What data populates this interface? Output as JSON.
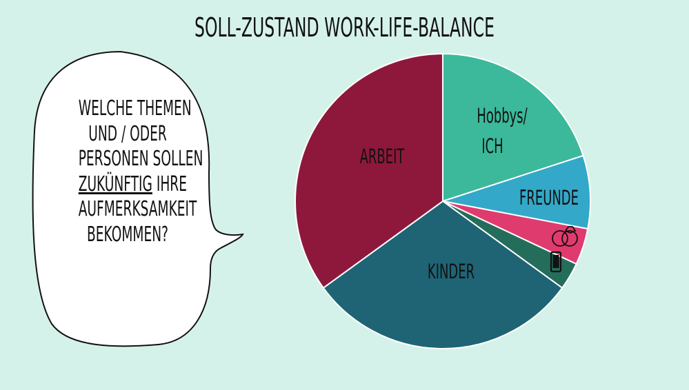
{
  "title": "SOLL-ZUSTAND WORK-LIFE-BALANCE",
  "bubble": {
    "lines": [
      {
        "text": "WELCHE THEMEN"
      },
      {
        "text": "UND / ODER"
      },
      {
        "text": "PERSONEN SOLLEN"
      },
      {
        "text_underlined": "ZUKÜNFTIG",
        "text_rest": " IHRE"
      },
      {
        "text": "AUFMERKSAMKEIT"
      },
      {
        "text": "BEKOMMEN?"
      }
    ]
  },
  "chart_data": {
    "type": "pie",
    "title": "SOLL-ZUSTAND WORK-LIFE-BALANCE",
    "slices": [
      {
        "label": "Hobbys/\nICH",
        "value": 20,
        "color": "#3bb99a"
      },
      {
        "label": "FREUNDE",
        "value": 8,
        "color": "#33a8c8"
      },
      {
        "label": "",
        "icon": "rings-icon",
        "value": 4,
        "color": "#e03b6e"
      },
      {
        "label": "",
        "icon": "smartphone-icon",
        "value": 3,
        "color": "#256d5b"
      },
      {
        "label": "KINDER",
        "value": 30,
        "color": "#1e6475"
      },
      {
        "label": "ARBEIT",
        "value": 35,
        "color": "#8e183c"
      }
    ],
    "legend": "none",
    "grid": false
  }
}
